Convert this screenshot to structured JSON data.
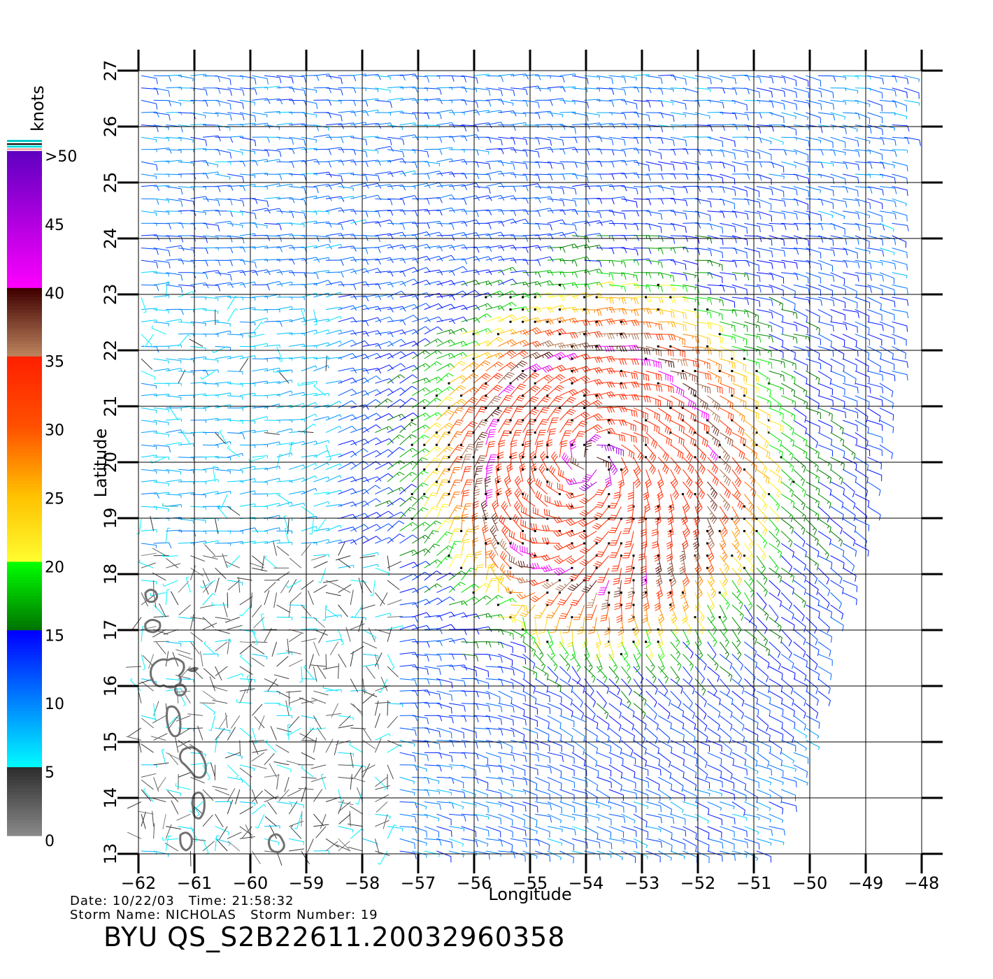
{
  "map": {
    "x_axis_title": "Longitude",
    "y_axis_title": "Latitude",
    "lon_ticks": [
      "−62",
      "−61",
      "−60",
      "−59",
      "−58",
      "−57",
      "−56",
      "−55",
      "−54",
      "−53",
      "−52",
      "−51",
      "−50",
      "−49",
      "−48"
    ],
    "lat_ticks": [
      "13",
      "14",
      "15",
      "16",
      "17",
      "18",
      "19",
      "20",
      "21",
      "22",
      "23",
      "24",
      "25",
      "26",
      "27"
    ],
    "lon_range": [
      -62,
      -48
    ],
    "lat_range": [
      13,
      27
    ],
    "grid": true,
    "storm_center": {
      "lon": -53.9,
      "lat": 20.0
    },
    "swath_east_edge_lon_at": [
      {
        "lat": 27.0,
        "lon": -48.3
      },
      {
        "lat": 22.0,
        "lon": -48.5
      },
      {
        "lat": 19.0,
        "lon": -49.0
      },
      {
        "lat": 17.0,
        "lon": -49.6
      },
      {
        "lat": 15.0,
        "lon": -50.0
      },
      {
        "lat": 13.0,
        "lon": -50.8
      }
    ]
  },
  "colorbar": {
    "unit_label": "knots",
    "tick_labels": [
      ">50",
      "45",
      "40",
      "35",
      "30",
      "25",
      "20",
      "15",
      "10",
      "5",
      "0"
    ],
    "stops": [
      {
        "value": 0,
        "color": "#8c8c8c"
      },
      {
        "value": 5,
        "color": "#2e2e2e"
      },
      {
        "value": 5.01,
        "color": "#00ffff"
      },
      {
        "value": 15,
        "color": "#0000ff"
      },
      {
        "value": 15.01,
        "color": "#007000"
      },
      {
        "value": 20,
        "color": "#00ff00"
      },
      {
        "value": 20.01,
        "color": "#ffff30"
      },
      {
        "value": 25,
        "color": "#ffc000"
      },
      {
        "value": 30,
        "color": "#ff5000"
      },
      {
        "value": 35,
        "color": "#ff2000"
      },
      {
        "value": 35.01,
        "color": "#c08860"
      },
      {
        "value": 40,
        "color": "#400000"
      },
      {
        "value": 40.01,
        "color": "#ff00ff"
      },
      {
        "value": 50,
        "color": "#6000c0"
      }
    ]
  },
  "info": {
    "date_line": "Date: 10/22/03   Time: 21:58:32",
    "storm_line": "Storm Name: NICHOLAS   Storm Number: 19",
    "product_id": "BYU QS_S2B22611.20032960358"
  }
}
